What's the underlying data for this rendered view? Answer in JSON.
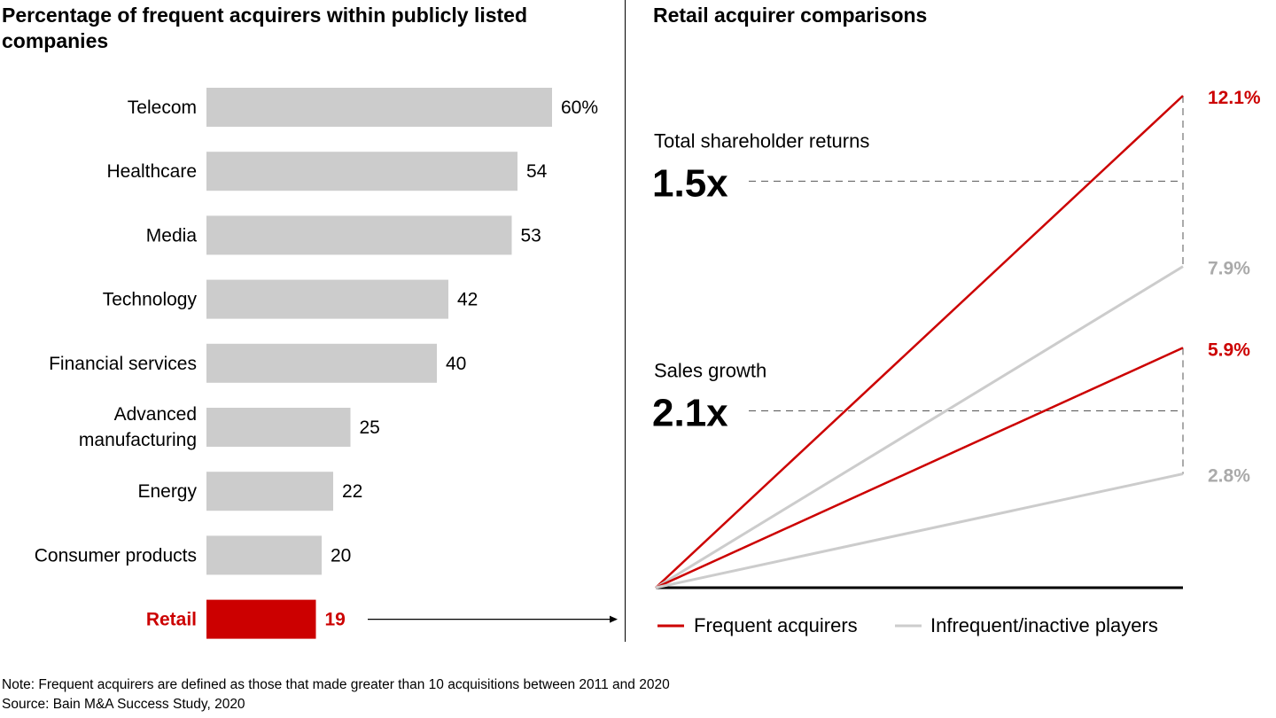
{
  "chart_data": [
    {
      "type": "bar",
      "orientation": "horizontal",
      "title": "Percentage of frequent acquirers within publicly listed companies",
      "categories": [
        "Telecom",
        "Healthcare",
        "Media",
        "Technology",
        "Financial services",
        "Advanced manufacturing",
        "Energy",
        "Consumer products",
        "Retail"
      ],
      "values": [
        60,
        54,
        53,
        42,
        40,
        25,
        22,
        20,
        19
      ],
      "value_labels": [
        "60%",
        "54",
        "53",
        "42",
        "40",
        "25",
        "22",
        "20",
        "19"
      ],
      "highlight": "Retail",
      "xlim": [
        0,
        60
      ],
      "colors": {
        "default": "#cccccc",
        "highlight": "#cc0000"
      }
    },
    {
      "type": "line",
      "title": "Retail acquirer comparisons",
      "ylim": [
        0,
        12.1
      ],
      "series": [
        {
          "name": "Frequent acquirers",
          "metric": "Total shareholder returns",
          "start": 0,
          "end": 12.1,
          "label": "12.1%",
          "color": "#cc0000"
        },
        {
          "name": "Infrequent/inactive players",
          "metric": "Total shareholder returns",
          "start": 0,
          "end": 7.9,
          "label": "7.9%",
          "color": "#cccccc"
        },
        {
          "name": "Frequent acquirers",
          "metric": "Sales growth",
          "start": 0,
          "end": 5.9,
          "label": "5.9%",
          "color": "#cc0000"
        },
        {
          "name": "Infrequent/inactive players",
          "metric": "Sales growth",
          "start": 0,
          "end": 2.8,
          "label": "2.8%",
          "color": "#cccccc"
        }
      ],
      "annotations": [
        {
          "label": "Total shareholder returns",
          "multiple": "1.5x",
          "between": [
            12.1,
            7.9
          ]
        },
        {
          "label": "Sales growth",
          "multiple": "2.1x",
          "between": [
            5.9,
            2.8
          ]
        }
      ],
      "legend": {
        "position": "bottom",
        "items": [
          "Frequent acquirers",
          "Infrequent/inactive players"
        ]
      }
    }
  ],
  "footer": {
    "note": "Note: Frequent acquirers are defined as those that made greater than 10 acquisitions between 2011 and 2020",
    "source": "Source: Bain M&A Success Study, 2020"
  }
}
